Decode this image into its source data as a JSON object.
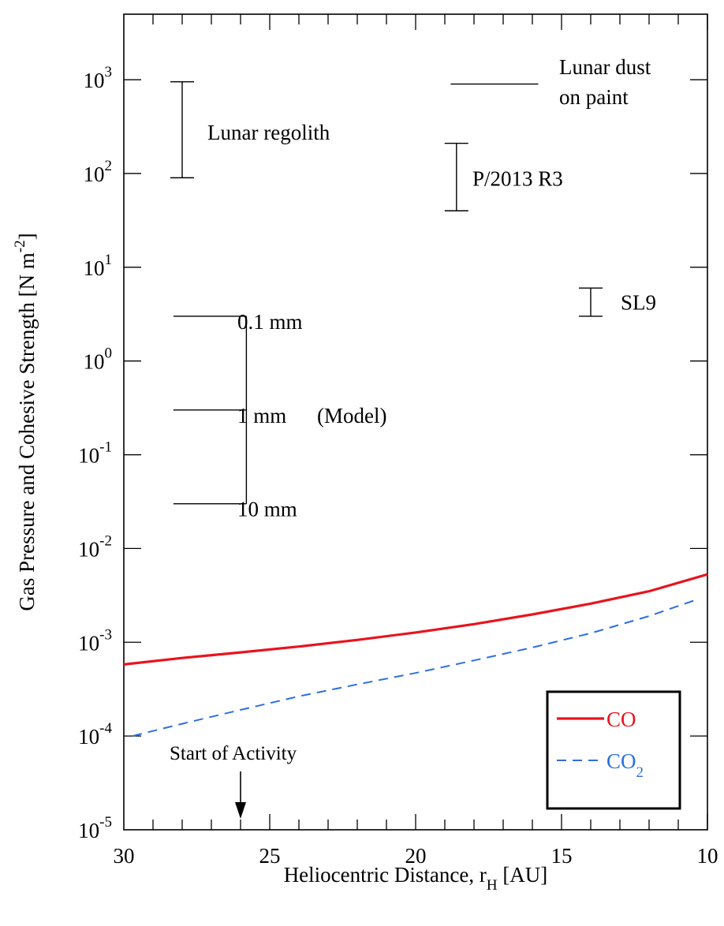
{
  "chart_data": {
    "type": "line",
    "xlabel": "Heliocentric Distance, r",
    "xlabel_sub": "H",
    "xlabel_unit": " [AU]",
    "ylabel": "Gas Pressure and Cohesive Strength [N m",
    "ylabel_sup": "-2",
    "ylabel_end": "]",
    "xlim": [
      30,
      10
    ],
    "ylim": [
      1e-05,
      5000
    ],
    "y_scale": "log",
    "x_ticks": [
      30,
      25,
      20,
      15,
      10
    ],
    "y_ticks": [
      {
        "base": "10",
        "exp": "-5",
        "value": 1e-05
      },
      {
        "base": "10",
        "exp": "-4",
        "value": 0.0001
      },
      {
        "base": "10",
        "exp": "-3",
        "value": 0.001
      },
      {
        "base": "10",
        "exp": "-2",
        "value": 0.01
      },
      {
        "base": "10",
        "exp": "-1",
        "value": 0.1
      },
      {
        "base": "10",
        "exp": "0",
        "value": 1
      },
      {
        "base": "10",
        "exp": "1",
        "value": 10
      },
      {
        "base": "10",
        "exp": "2",
        "value": 100
      },
      {
        "base": "10",
        "exp": "3",
        "value": 1000
      }
    ],
    "series": [
      {
        "name": "CO",
        "color": "#e8141e",
        "style": "solid",
        "x": [
          30,
          28,
          26,
          24,
          22,
          20,
          18,
          16,
          14,
          12,
          10
        ],
        "y": [
          0.00058,
          0.00068,
          0.00078,
          0.0009,
          0.00106,
          0.00127,
          0.00156,
          0.00198,
          0.00258,
          0.0035,
          0.0053
        ]
      },
      {
        "name": "CO",
        "name_sub": "2",
        "color": "#2e6fe0",
        "style": "dashed",
        "x": [
          29.7,
          28,
          26,
          24,
          22,
          20,
          18,
          16,
          14,
          12,
          10.3
        ],
        "y": [
          0.0001,
          0.000135,
          0.00019,
          0.000265,
          0.000355,
          0.00047,
          0.00064,
          0.00088,
          0.00125,
          0.0019,
          0.0029
        ]
      }
    ],
    "legend_position": "bottom-right",
    "range_markers": [
      {
        "name": "Lunar regolith",
        "x": 28.0,
        "y_low": 90,
        "y_high": 950,
        "label": "Lunar regolith"
      },
      {
        "name": "P/2013 R3",
        "x": 18.6,
        "y_low": 40,
        "y_high": 210,
        "label": "P/2013 R3"
      },
      {
        "name": "SL9",
        "x": 14.0,
        "y_low": 3,
        "y_high": 6,
        "label": "SL9"
      }
    ],
    "lunar_dust": {
      "x_start": 18.8,
      "x_end": 15.8,
      "y": 900,
      "label_line1": "Lunar dust",
      "label_line2": "on paint"
    },
    "model_scale": {
      "x": 25.8,
      "tick_x_start": 28.3,
      "ticks": [
        {
          "y": 3.0,
          "label": "0.1 mm"
        },
        {
          "y": 0.3,
          "label": "1 mm"
        },
        {
          "y": 0.03,
          "label": "10 mm"
        }
      ],
      "model_label": "(Model)"
    },
    "start_activity": {
      "x": 26.0,
      "label": "Start of Activity"
    }
  }
}
